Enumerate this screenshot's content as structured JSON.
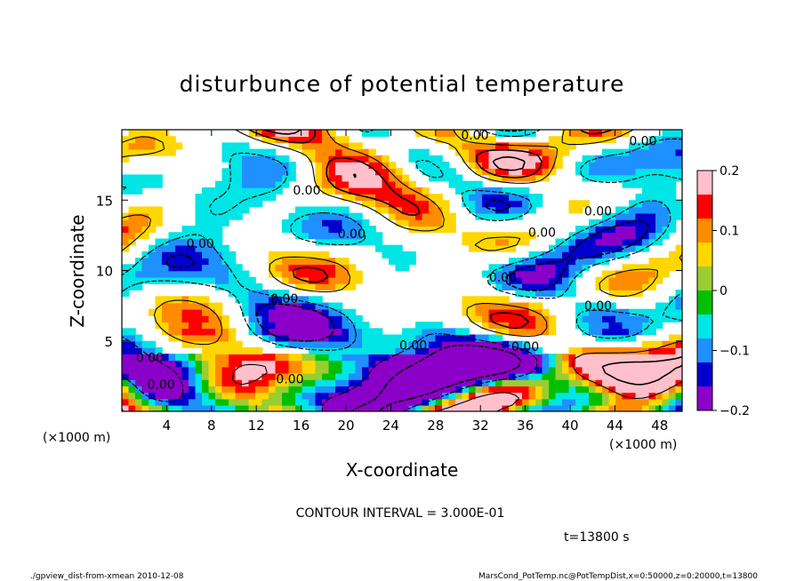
{
  "chart_data": {
    "type": "heatmap",
    "title": "disturbunce of potential temperature",
    "xlabel": "X-coordinate",
    "ylabel": "Z-coordinate",
    "x_unit_left": "(×1000 m)",
    "x_unit_right": "(×1000 m)",
    "xlim": [
      0,
      50
    ],
    "ylim": [
      0,
      20
    ],
    "x_ticks": [
      4,
      8,
      12,
      16,
      20,
      24,
      28,
      32,
      36,
      40,
      44,
      48
    ],
    "y_ticks": [
      5,
      10,
      15
    ],
    "colorbar": {
      "range": [
        -0.2,
        0.2
      ],
      "tick_values": [
        0.2,
        0.1,
        0,
        -0.1,
        -0.2
      ],
      "tick_labels": [
        "0.2",
        "0.1",
        "0",
        "−0.1",
        "−0.2"
      ],
      "colors": [
        "#ffc0cb",
        "#ff0000",
        "#ff8c00",
        "#ffd700",
        "#9acd32",
        "#00c000",
        "#00e5e5",
        "#1e90ff",
        "#0000cd",
        "#8b00c8"
      ]
    },
    "contour_interval_text": "CONTOUR INTERVAL = 3.000E-01",
    "contour_labels": [
      "0.00",
      "0.00",
      "0.00",
      "0.00",
      "0.00",
      "0.00",
      "0.00",
      "0.00",
      "0.00",
      "0.00",
      "0.00",
      "0.00",
      "0.00",
      "0.00",
      "0.00"
    ],
    "time_text": "t=13800 s",
    "footer_left": "./gpview_dist-from-xmean  2010-12-08",
    "footer_right": "MarsCond_PotTemp.nc@PotTempDist,x=0:50000,z=0:20000,t=13800"
  }
}
